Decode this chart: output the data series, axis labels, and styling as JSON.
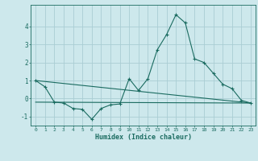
{
  "xlabel": "Humidex (Indice chaleur)",
  "background_color": "#cde8ec",
  "grid_color": "#aacdd4",
  "line_color": "#1a6b60",
  "x_values": [
    0,
    1,
    2,
    3,
    4,
    5,
    6,
    7,
    8,
    9,
    10,
    11,
    12,
    13,
    14,
    15,
    16,
    17,
    18,
    19,
    20,
    21,
    22,
    23
  ],
  "series1": [
    1.0,
    0.65,
    -0.2,
    -0.25,
    -0.55,
    -0.6,
    -1.15,
    -0.55,
    -0.35,
    -0.3,
    1.1,
    0.45,
    1.1,
    2.7,
    3.55,
    4.65,
    4.2,
    2.2,
    2.0,
    1.4,
    0.8,
    0.55,
    -0.1,
    -0.25
  ],
  "series2_x": [
    0,
    23
  ],
  "series2_y": [
    1.0,
    -0.25
  ],
  "series3_x": [
    0,
    23
  ],
  "series3_y": [
    -0.2,
    -0.25
  ],
  "ylim": [
    -1.5,
    5.2
  ],
  "xlim": [
    -0.5,
    23.5
  ],
  "yticks": [
    -1,
    0,
    1,
    2,
    3,
    4
  ],
  "xticks": [
    0,
    1,
    2,
    3,
    4,
    5,
    6,
    7,
    8,
    9,
    10,
    11,
    12,
    13,
    14,
    15,
    16,
    17,
    18,
    19,
    20,
    21,
    22,
    23
  ],
  "figsize": [
    3.2,
    2.0
  ],
  "dpi": 100
}
